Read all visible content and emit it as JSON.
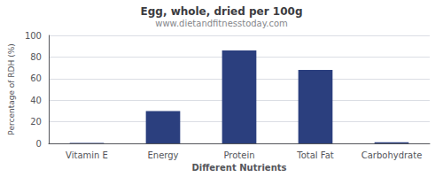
{
  "chart_data": {
    "type": "bar",
    "title": "Egg, whole, dried per 100g",
    "subtitle": "www.dietandfitnesstoday.com",
    "xlabel": "Different Nutrients",
    "ylabel": "Percentage of RDH (%)",
    "categories": [
      "Vitamin E",
      "Energy",
      "Protein",
      "Total Fat",
      "Carbohydrate"
    ],
    "values": [
      0.5,
      30,
      86,
      68,
      1
    ],
    "color": "#2b3f7e",
    "ylim": [
      0,
      100
    ],
    "yticks": [
      0,
      20,
      40,
      60,
      80,
      100
    ],
    "grid": true
  }
}
